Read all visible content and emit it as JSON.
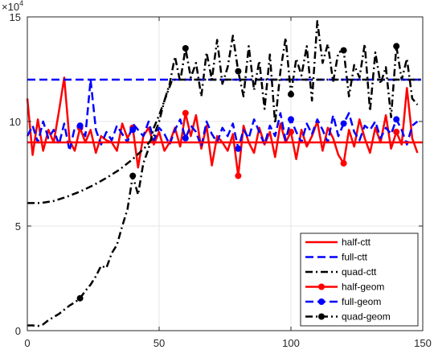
{
  "chart_data": {
    "type": "line",
    "title": "",
    "xlabel": "",
    "ylabel": "",
    "exponent_label": "×10",
    "exponent_power": "4",
    "xlim": [
      0,
      150
    ],
    "ylim": [
      0,
      150000
    ],
    "xticks": [
      0,
      50,
      100,
      150
    ],
    "yticks": [
      0,
      50000,
      100000,
      150000
    ],
    "xtick_labels": [
      "0",
      "50",
      "100",
      "150"
    ],
    "ytick_labels": [
      "0",
      "5",
      "10",
      "15"
    ],
    "grid": true,
    "legend_position": "bottom-right",
    "series": [
      {
        "name": "half-ctt",
        "color": "#ff0000",
        "style": "solid",
        "marker": "none",
        "x": [
          0,
          150
        ],
        "y": [
          90000,
          90000
        ]
      },
      {
        "name": "full-ctt",
        "color": "#0000ff",
        "style": "dashed",
        "marker": "none",
        "x": [
          0,
          150
        ],
        "y": [
          120000,
          120000
        ]
      },
      {
        "name": "quad-ctt",
        "color": "#000000",
        "style": "dashdot",
        "marker": "none",
        "x": [
          0,
          5,
          10,
          15,
          20,
          25,
          30,
          35,
          40,
          45,
          48,
          50,
          52,
          55,
          60,
          70,
          80,
          90,
          100,
          110,
          120,
          130,
          140,
          150
        ],
        "y": [
          61000,
          61000,
          62000,
          64000,
          66500,
          69500,
          73000,
          77000,
          82000,
          88000,
          93000,
          100000,
          110000,
          120000,
          120000,
          120000,
          120000,
          120000,
          120000,
          120000,
          120000,
          120000,
          120000,
          120000
        ]
      },
      {
        "name": "half-geom",
        "color": "#ff0000",
        "style": "solid",
        "marker": "circle",
        "x": [
          0,
          2,
          4,
          6,
          8,
          10,
          12,
          14,
          16,
          18,
          20,
          22,
          24,
          26,
          28,
          30,
          32,
          34,
          36,
          38,
          40,
          42,
          44,
          46,
          48,
          50,
          52,
          54,
          56,
          58,
          60,
          62,
          64,
          66,
          68,
          70,
          72,
          74,
          76,
          78,
          80,
          82,
          84,
          86,
          88,
          90,
          92,
          94,
          96,
          98,
          100,
          102,
          104,
          106,
          108,
          110,
          112,
          114,
          116,
          118,
          120,
          122,
          124,
          126,
          128,
          130,
          132,
          134,
          136,
          138,
          140,
          142,
          144,
          146,
          148
        ],
        "y": [
          111000,
          84000,
          101000,
          86000,
          96000,
          90000,
          105000,
          121000,
          91000,
          86000,
          97000,
          90000,
          96000,
          85000,
          93000,
          91000,
          90000,
          86000,
          99000,
          92000,
          97000,
          78000,
          93000,
          97000,
          89000,
          95000,
          86000,
          90000,
          97000,
          88000,
          104000,
          93000,
          103000,
          87000,
          98000,
          79000,
          93000,
          90000,
          86000,
          94000,
          74000,
          98000,
          90000,
          85000,
          97000,
          89000,
          95000,
          83000,
          99000,
          90000,
          95000,
          82000,
          96000,
          88000,
          93000,
          100000,
          86000,
          97000,
          92000,
          84000,
          80000,
          96000,
          88000,
          101000,
          92000,
          85000,
          97000,
          90000,
          103000,
          87000,
          95000,
          89000,
          116000,
          92000,
          85000
        ],
        "markers_x": [
          20,
          40,
          60,
          80,
          100,
          120,
          140
        ],
        "markers_y": [
          97000,
          97000,
          104000,
          74000,
          95000,
          80000,
          95000
        ]
      },
      {
        "name": "full-geom",
        "color": "#0000ff",
        "style": "dashed",
        "marker": "circle",
        "x": [
          0,
          2,
          4,
          6,
          8,
          10,
          12,
          14,
          16,
          18,
          20,
          22,
          24,
          26,
          28,
          30,
          32,
          34,
          36,
          38,
          40,
          42,
          44,
          46,
          48,
          50,
          52,
          54,
          56,
          58,
          60,
          62,
          64,
          66,
          68,
          70,
          72,
          74,
          76,
          78,
          80,
          82,
          84,
          86,
          88,
          90,
          92,
          94,
          96,
          98,
          100,
          102,
          104,
          106,
          108,
          110,
          112,
          114,
          116,
          118,
          120,
          122,
          124,
          126,
          128,
          130,
          132,
          134,
          136,
          138,
          140,
          142,
          144,
          146,
          148
        ],
        "y": [
          93000,
          98000,
          90000,
          100000,
          92000,
          96000,
          89000,
          99000,
          86000,
          97000,
          98000,
          93000,
          120000,
          96000,
          89000,
          95000,
          91000,
          98000,
          94000,
          90000,
          99000,
          96000,
          93000,
          100000,
          91000,
          97000,
          94000,
          89000,
          96000,
          101000,
          92000,
          98000,
          95000,
          88000,
          100000,
          94000,
          90000,
          97000,
          93000,
          99000,
          87000,
          96000,
          92000,
          101000,
          95000,
          89000,
          98000,
          93000,
          104000,
          91000,
          101000,
          95000,
          90000,
          99000,
          94000,
          101000,
          96000,
          90000,
          103000,
          93000,
          99000,
          104000,
          95000,
          91000,
          98000,
          96000,
          100000,
          92000,
          97000,
          94000,
          101000,
          96000,
          89000,
          98000,
          100000
        ],
        "markers_x": [
          20,
          40,
          60,
          80,
          100,
          120,
          140
        ],
        "markers_y": [
          98000,
          96000,
          92000,
          87000,
          101000,
          99000,
          101000
        ]
      },
      {
        "name": "quad-geom",
        "color": "#000000",
        "style": "dashdot",
        "marker": "circle",
        "x": [
          0,
          2,
          4,
          6,
          8,
          10,
          12,
          14,
          16,
          18,
          20,
          22,
          24,
          26,
          28,
          30,
          32,
          34,
          36,
          38,
          40,
          42,
          44,
          46,
          48,
          50,
          52,
          54,
          56,
          58,
          60,
          62,
          64,
          66,
          68,
          70,
          72,
          74,
          76,
          78,
          80,
          82,
          84,
          86,
          88,
          90,
          92,
          94,
          96,
          98,
          100,
          102,
          104,
          106,
          108,
          110,
          112,
          114,
          116,
          118,
          120,
          122,
          124,
          126,
          128,
          130,
          132,
          134,
          136,
          138,
          140,
          142,
          144,
          146,
          148
        ],
        "y": [
          2500,
          2500,
          2200,
          3000,
          5000,
          6500,
          8000,
          10000,
          12000,
          13500,
          15500,
          19000,
          22000,
          26000,
          31000,
          30000,
          37000,
          41000,
          50000,
          58000,
          74000,
          65000,
          80000,
          87000,
          97000,
          103000,
          110000,
          118000,
          131000,
          119000,
          135000,
          121000,
          128000,
          112000,
          133000,
          120000,
          139000,
          118000,
          126000,
          141000,
          124000,
          112000,
          136000,
          115000,
          129000,
          106000,
          132000,
          99000,
          124000,
          140000,
          113000,
          130000,
          122000,
          136000,
          110000,
          148000,
          128000,
          137000,
          119000,
          133000,
          134000,
          112000,
          127000,
          121000,
          137000,
          105000,
          133000,
          118000,
          126000,
          102000,
          136000,
          120000,
          130000,
          111000,
          108000
        ],
        "markers_x": [
          20,
          40,
          60,
          80,
          100,
          120,
          140
        ],
        "markers_y": [
          15500,
          74000,
          135000,
          124000,
          113000,
          134000,
          136000
        ]
      }
    ]
  }
}
